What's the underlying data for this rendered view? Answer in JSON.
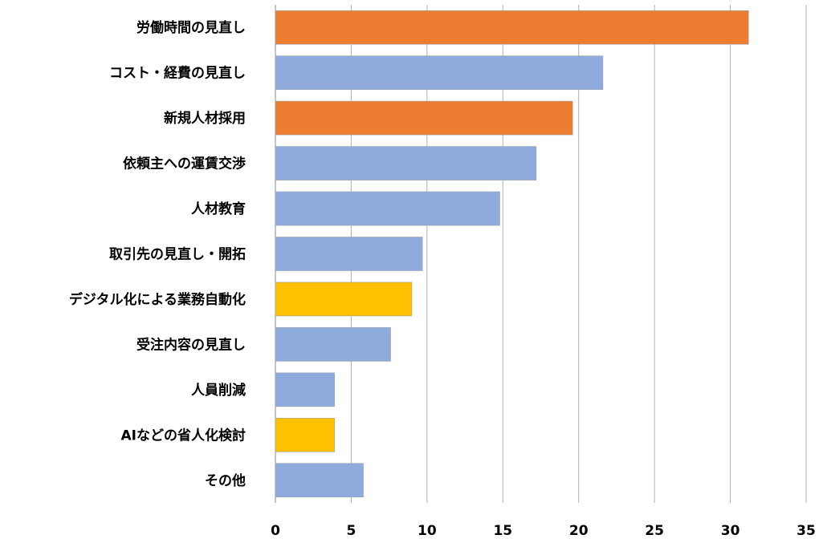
{
  "chart_data": {
    "type": "bar",
    "orientation": "horizontal",
    "title": "",
    "xlabel": "",
    "ylabel": "",
    "xlim": [
      0,
      35
    ],
    "xticks": [
      0,
      5,
      10,
      15,
      20,
      25,
      30,
      35
    ],
    "grid": "vertical",
    "legend": "none",
    "colors": {
      "orange": "#ED7D31",
      "blue": "#8FAADC",
      "gold": "#FFC000",
      "grid": "#b0b0b0"
    },
    "categories": [
      "労働時間の見直し",
      "コスト・経費の見直し",
      "新規人材採用",
      "依頼主への運賃交渉",
      "人材教育",
      "取引先の見直し・開拓",
      "デジタル化による業務自動化",
      "受注内容の見直し",
      "人員削減",
      "AIなどの省人化検討",
      "その他"
    ],
    "values": [
      31.2,
      21.6,
      19.6,
      17.2,
      14.8,
      9.7,
      9.0,
      7.6,
      3.9,
      3.9,
      5.8
    ],
    "bar_colors": [
      "orange",
      "blue",
      "orange",
      "blue",
      "blue",
      "blue",
      "gold",
      "blue",
      "blue",
      "gold",
      "blue"
    ]
  }
}
